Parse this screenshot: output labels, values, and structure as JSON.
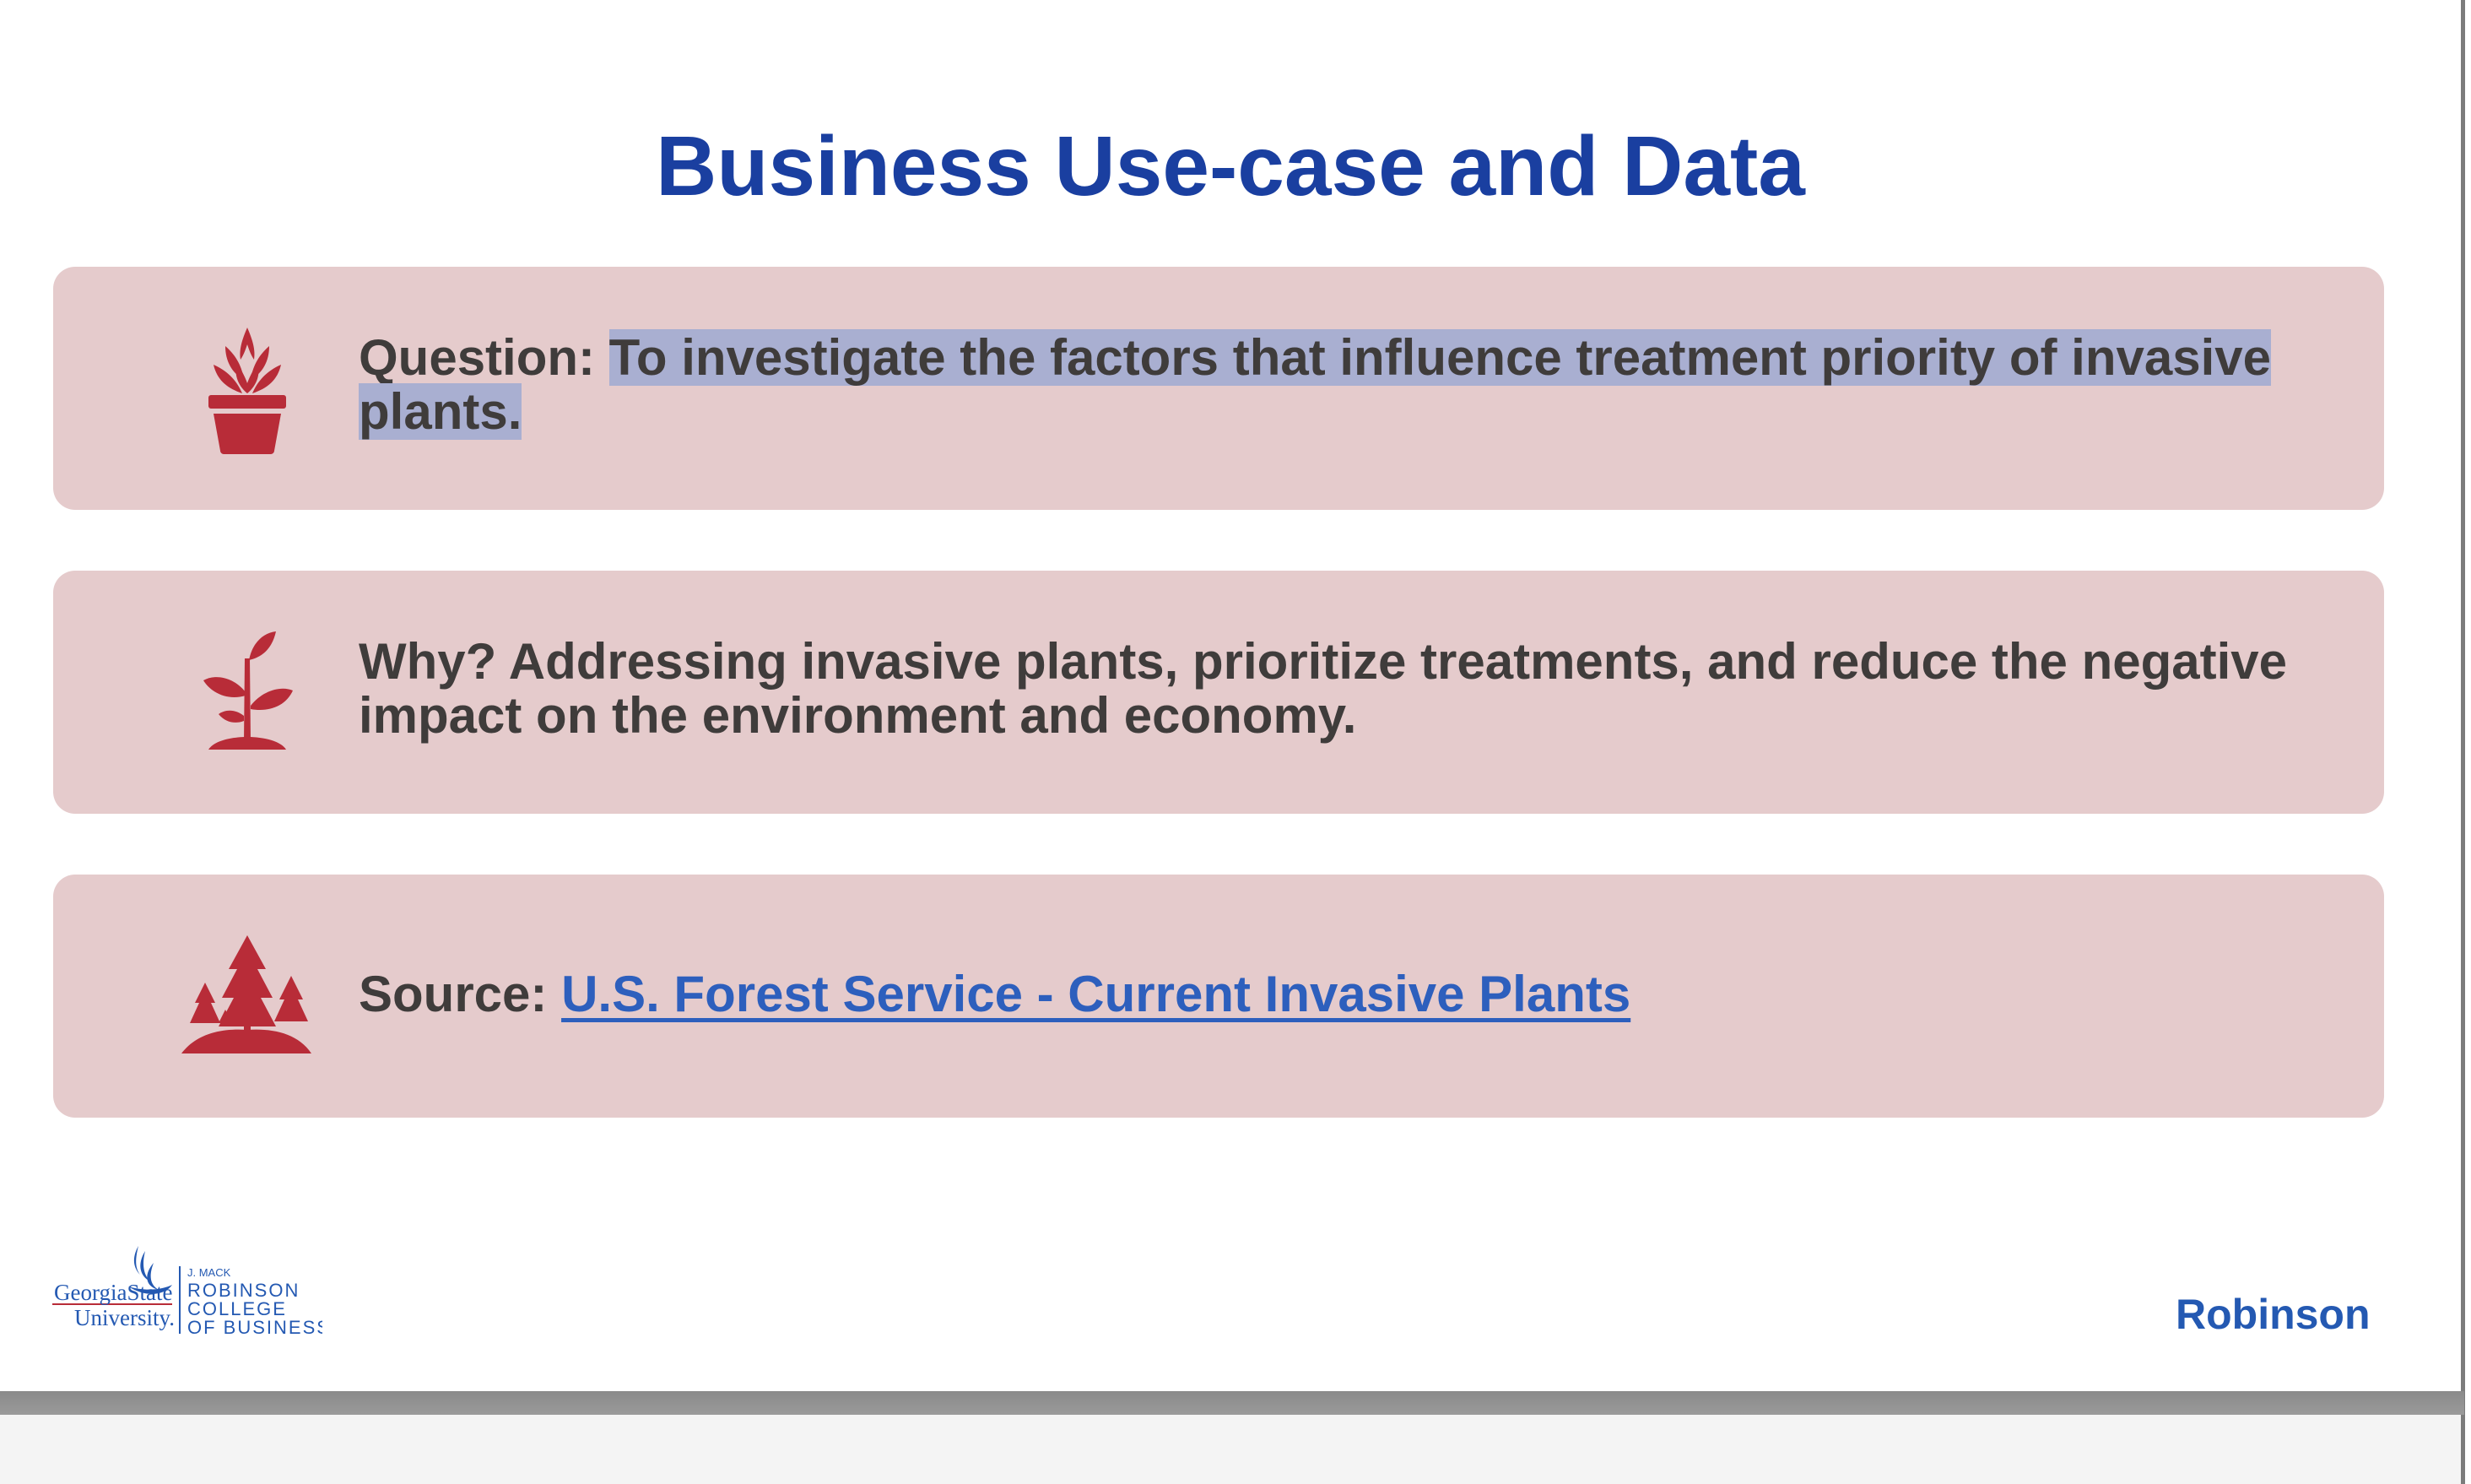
{
  "slide": {
    "title": "Business Use-case and Data",
    "cards": [
      {
        "icon": "potted-plant-icon",
        "label": "Question:",
        "text_highlighted": "To investigate the factors that influence treatment priority of invasive plants."
      },
      {
        "icon": "sprout-icon",
        "text": "Why? Addressing invasive plants, prioritize treatments, and reduce the negative impact on the environment and economy."
      },
      {
        "icon": "forest-trees-icon",
        "label": "Source:",
        "link_text": "U.S. Forest Service - Current Invasive Plants"
      }
    ]
  },
  "footer": {
    "left_logo": {
      "line1": "GeorgiaState",
      "line2": "University.",
      "line3": "J. MACK",
      "line4": "ROBINSON",
      "line5": "COLLEGE",
      "line6": "OF BUSINESS"
    },
    "right_logo": "Robinson"
  },
  "colors": {
    "title": "#1a3fa0",
    "card_background": "#e5cbcc",
    "icon_red": "#b82c38",
    "text_dark": "#3f3c3b",
    "link_blue": "#2d5fbd",
    "selection_highlight": "#a9afd1",
    "brand_blue": "#2459b2"
  }
}
